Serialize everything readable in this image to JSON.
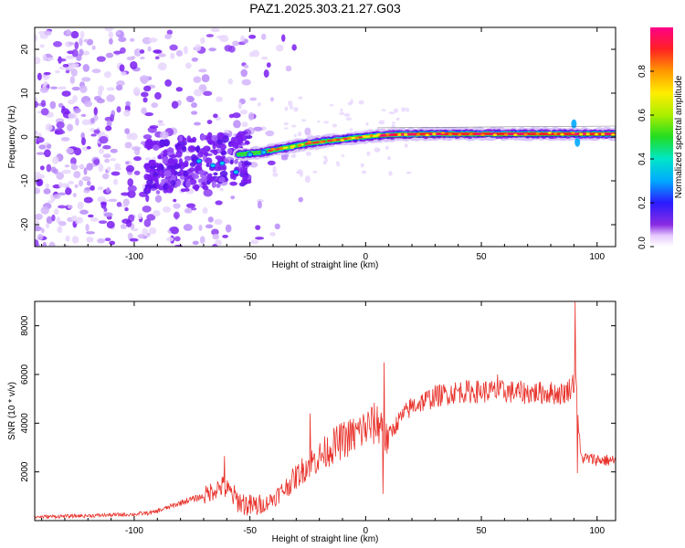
{
  "title": "PAZ1.2025.303.21.27.G03",
  "colors": {
    "snr_line": "#e8322b",
    "spec_purple": "#7a1cf2",
    "spec_core": "#e8322b",
    "frame": "#000000"
  },
  "chart_data": [
    {
      "type": "heatmap",
      "name": "spectrogram",
      "title": "PAZ1.2025.303.21.27.G03",
      "xlabel": "Height of straight line (km)",
      "ylabel": "Frequency (Hz)",
      "xlim": [
        -143,
        108
      ],
      "ylim": [
        -25,
        25
      ],
      "xticks": [
        -100,
        -50,
        0,
        50,
        100
      ],
      "yticks": [
        -20,
        -10,
        0,
        10,
        20
      ],
      "colorbar": {
        "label": "Normalized spectral amplitude",
        "range": [
          0,
          1
        ],
        "ticks": [
          "0.0",
          "0.2",
          "0.4",
          "0.6",
          "0.8"
        ],
        "tick_values": [
          0.0,
          0.2,
          0.4,
          0.6,
          0.8
        ],
        "colormap": "rainbow (white-purple-blue-cyan-green-yellow-red-pink)"
      },
      "ridge": {
        "description": "Dominant frequency track rising from about -3 Hz at -50 km to about 0.7 Hz beyond 10 km",
        "x": [
          -55,
          -45,
          -35,
          -25,
          -15,
          -5,
          5,
          15,
          30,
          50,
          70,
          90,
          108
        ],
        "freq_hz": [
          -4.0,
          -3.5,
          -2.5,
          -1.5,
          -0.8,
          -0.2,
          0.3,
          0.6,
          0.7,
          0.7,
          0.7,
          0.7,
          0.7
        ]
      },
      "noise_region": {
        "description": "Broadband scattered energy across all frequencies for heights below about -55 km",
        "x_range": [
          -143,
          -40
        ]
      }
    },
    {
      "type": "line",
      "name": "snr",
      "xlabel": "Height of straight line (km)",
      "ylabel": "SNR (10 * v/v)",
      "xlim": [
        -143,
        108
      ],
      "ylim": [
        0,
        9000
      ],
      "xticks": [
        -100,
        -50,
        0,
        50,
        100
      ],
      "yticks": [
        2000,
        4000,
        6000,
        8000
      ],
      "envelope": {
        "x": [
          -143,
          -120,
          -100,
          -92,
          -85,
          -78,
          -70,
          -65,
          -62,
          -58,
          -55,
          -50,
          -45,
          -40,
          -35,
          -30,
          -25,
          -20,
          -15,
          -10,
          -5,
          0,
          5,
          7,
          8,
          9,
          10,
          15,
          20,
          25,
          30,
          35,
          40,
          50,
          60,
          70,
          80,
          85,
          88,
          90,
          91,
          92,
          93,
          95,
          100,
          108
        ],
        "y": [
          150,
          200,
          260,
          330,
          550,
          800,
          1000,
          1300,
          1400,
          1100,
          800,
          600,
          600,
          900,
          1300,
          1800,
          2300,
          2600,
          3000,
          3300,
          3500,
          3800,
          4000,
          4000,
          3500,
          3300,
          3500,
          4200,
          4700,
          4900,
          5100,
          5200,
          5300,
          5300,
          5300,
          5250,
          5250,
          5200,
          5400,
          5700,
          6200,
          3800,
          2600,
          2550,
          2500,
          2450
        ]
      },
      "spikes": [
        {
          "x": 8,
          "y": 6500
        },
        {
          "x": 7.5,
          "y": 1100
        },
        {
          "x": -24,
          "y": 4400
        },
        {
          "x": -61,
          "y": 2650
        },
        {
          "x": 57,
          "y": 6000
        },
        {
          "x": 90.5,
          "y": 9000
        },
        {
          "x": 91.5,
          "y": 1950
        }
      ]
    }
  ]
}
